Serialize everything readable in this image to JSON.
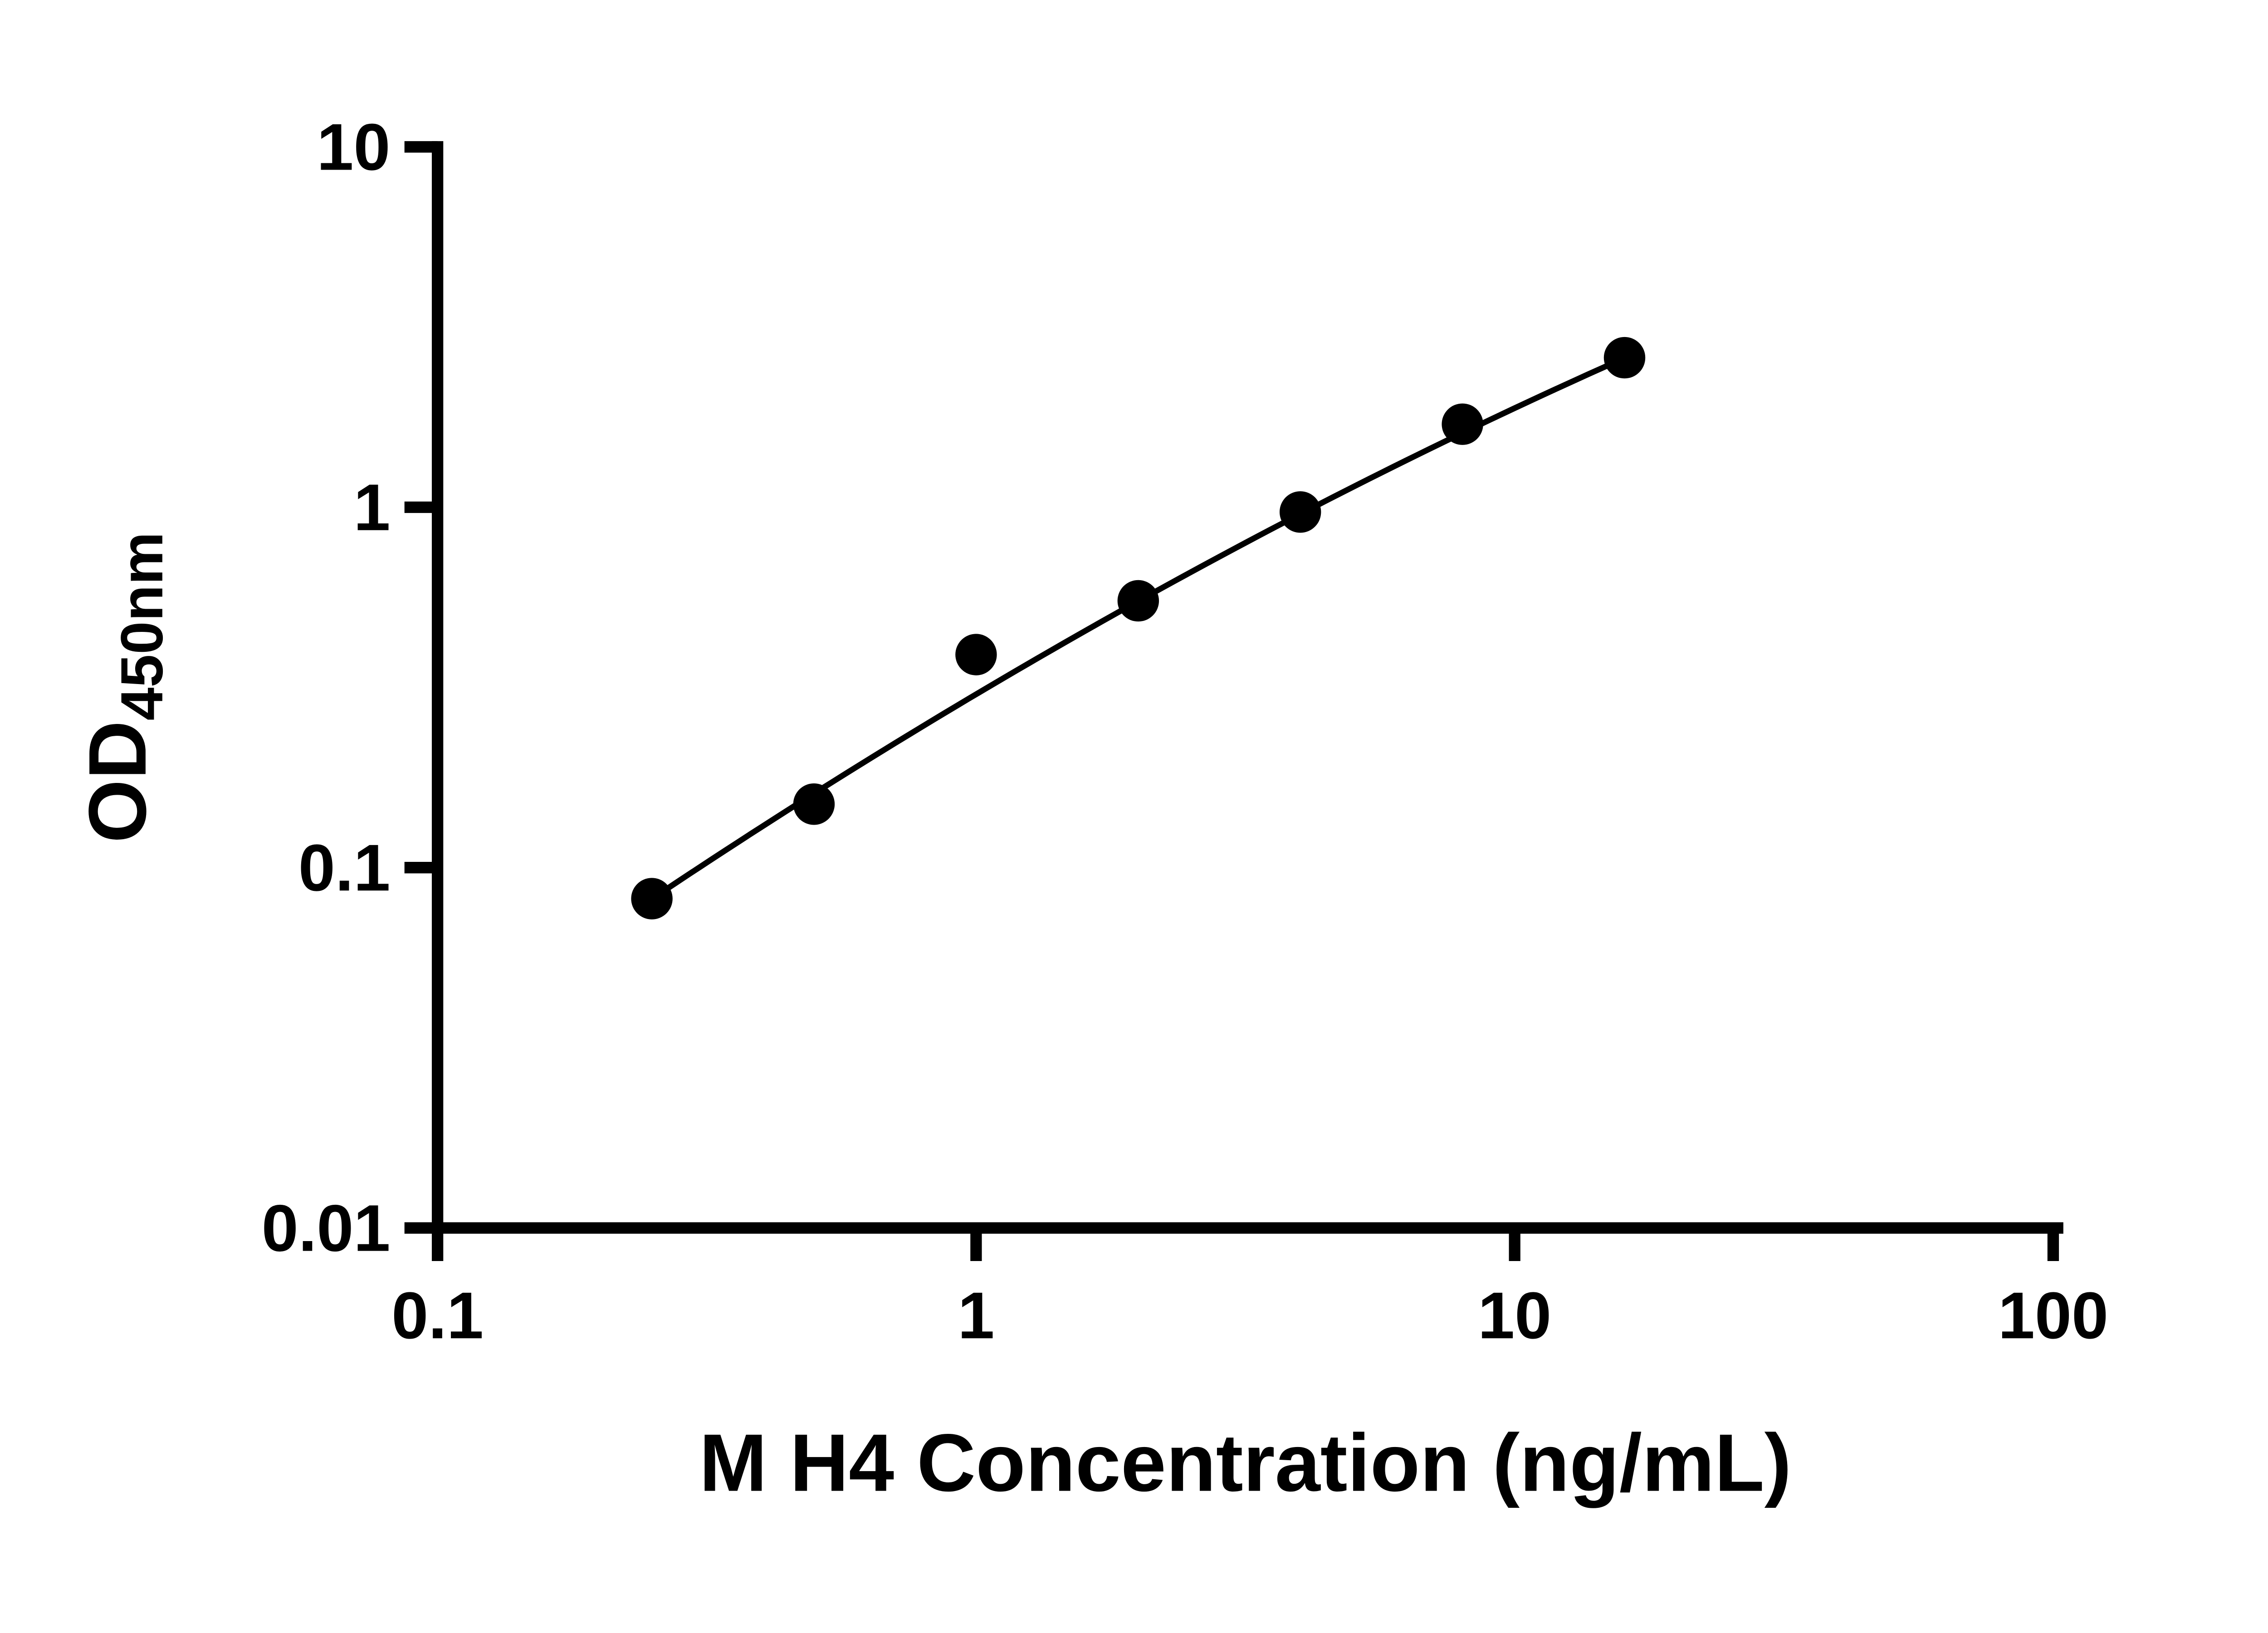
{
  "chart_data": {
    "type": "scatter",
    "title": "",
    "xlabel": "M H4 Concentration (ng/mL)",
    "ylabel": "OD",
    "ylabel_subscript": "450nm",
    "x_scale": "log",
    "y_scale": "log",
    "xlim": [
      0.1,
      100
    ],
    "ylim": [
      0.01,
      10
    ],
    "x_ticks": [
      0.1,
      1,
      10,
      100
    ],
    "x_tick_labels": [
      "0.1",
      "1",
      "10",
      "100"
    ],
    "y_ticks": [
      0.01,
      0.1,
      1,
      10
    ],
    "y_tick_labels": [
      "0.01",
      "0.1",
      "1",
      "10"
    ],
    "grid": false,
    "legend": "none",
    "points": [
      {
        "x": 0.25,
        "y": 0.082
      },
      {
        "x": 0.5,
        "y": 0.15
      },
      {
        "x": 1,
        "y": 0.39
      },
      {
        "x": 2,
        "y": 0.55
      },
      {
        "x": 4,
        "y": 0.97
      },
      {
        "x": 8,
        "y": 1.7
      },
      {
        "x": 16,
        "y": 2.6
      }
    ],
    "fit_curve": {
      "type": "quadratic_loglog",
      "a": -0.519,
      "b": 0.887,
      "c": -0.093,
      "x_start": 0.25,
      "x_end": 16
    },
    "colors": {
      "points": "#000000",
      "line": "#000000",
      "axis": "#000000",
      "text": "#000000",
      "background": "#ffffff"
    }
  }
}
